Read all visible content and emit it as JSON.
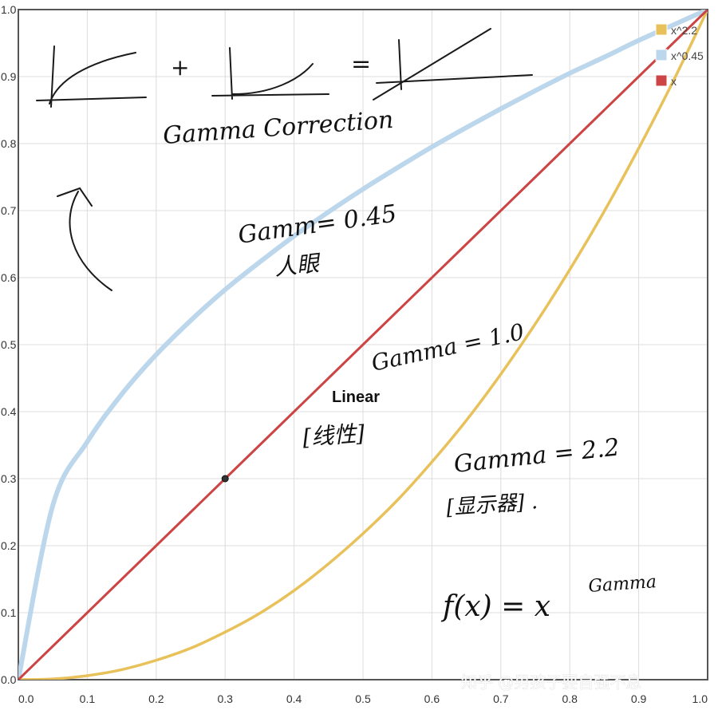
{
  "chart_data": {
    "type": "line",
    "title": "",
    "xlabel": "",
    "ylabel": "",
    "xlim": [
      0,
      1
    ],
    "ylim": [
      0,
      1
    ],
    "grid": true,
    "legend_position": "top-right",
    "x_ticks": [
      "0.0",
      "0.1",
      "0.2",
      "0.3",
      "0.4",
      "0.5",
      "0.6",
      "0.7",
      "0.8",
      "0.9",
      "1.0"
    ],
    "y_ticks": [
      "0.0",
      "0.1",
      "0.2",
      "0.3",
      "0.4",
      "0.5",
      "0.6",
      "0.7",
      "0.8",
      "0.9",
      "1.0"
    ],
    "x": [
      0,
      0.05,
      0.1,
      0.15,
      0.2,
      0.25,
      0.3,
      0.35,
      0.4,
      0.45,
      0.5,
      0.55,
      0.6,
      0.65,
      0.7,
      0.75,
      0.8,
      0.85,
      0.9,
      0.95,
      1.0
    ],
    "series": [
      {
        "name": "x^2.2",
        "color": "#e8c15a",
        "values": [
          0,
          0.001,
          0.006,
          0.015,
          0.029,
          0.047,
          0.071,
          0.099,
          0.133,
          0.173,
          0.218,
          0.268,
          0.325,
          0.387,
          0.456,
          0.531,
          0.612,
          0.699,
          0.793,
          0.893,
          1.0
        ]
      },
      {
        "name": "x^0.45",
        "color": "#bcd7ec",
        "values": [
          0,
          0.26,
          0.355,
          0.426,
          0.485,
          0.536,
          0.582,
          0.623,
          0.662,
          0.698,
          0.732,
          0.764,
          0.795,
          0.824,
          0.852,
          0.879,
          0.905,
          0.929,
          0.954,
          0.977,
          1.0
        ]
      },
      {
        "name": "x",
        "color": "#cc4444",
        "values": [
          0,
          0.05,
          0.1,
          0.15,
          0.2,
          0.25,
          0.3,
          0.35,
          0.4,
          0.45,
          0.5,
          0.55,
          0.6,
          0.65,
          0.7,
          0.75,
          0.8,
          0.85,
          0.9,
          0.95,
          1.0
        ]
      }
    ],
    "highlight_point": {
      "x": 0.3,
      "y": 0.3
    },
    "annotations": {
      "gamma_correction": "Gamma Correction",
      "gamma_045": "Gamm= 0.45",
      "gamma_045_note": "人眼",
      "gamma_10": "Gamma = 1.0",
      "linear": "Linear",
      "linear_note": "[线性]",
      "gamma_22": "Gamma = 2.2",
      "gamma_22_note": "[显示器] .",
      "formula_base": "f(x) = x",
      "formula_exp": "Gamma",
      "plus": "+",
      "equals": "="
    },
    "watermark": "知乎 @男孩子要自强不息"
  }
}
